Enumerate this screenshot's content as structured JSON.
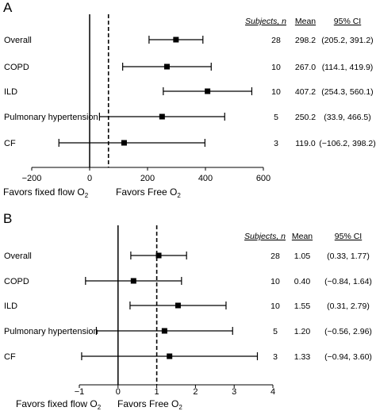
{
  "chart_data": [
    {
      "type": "forest",
      "panel_label": "A",
      "title": "",
      "xlabel": "",
      "ylabel": "",
      "xlim": [
        -200,
        600
      ],
      "xticks": [
        -200,
        0,
        200,
        400,
        600
      ],
      "xtick_labels": [
        "−200",
        "0",
        "200",
        "400",
        "600"
      ],
      "null_line": 0,
      "reference_line": 65,
      "favors_left": "Favors fixed flow O",
      "favors_right": "Favors Free O",
      "favors_subscript": "2",
      "column_headers": {
        "subjects": "Subjects, n",
        "mean": "Mean",
        "ci": "95% CI"
      },
      "rows": [
        {
          "label": "Overall",
          "n": "28",
          "mean": 298.2,
          "lower": 205.2,
          "upper": 391.2,
          "mean_text": "298.2",
          "ci_text": "(205.2, 391.2)"
        },
        {
          "label": "COPD",
          "n": "10",
          "mean": 267.0,
          "lower": 114.1,
          "upper": 419.9,
          "mean_text": "267.0",
          "ci_text": "(114.1, 419.9)"
        },
        {
          "label": "ILD",
          "n": "10",
          "mean": 407.2,
          "lower": 254.3,
          "upper": 560.1,
          "mean_text": "407.2",
          "ci_text": "(254.3, 560.1)"
        },
        {
          "label": "Pulmonary hypertension",
          "n": "5",
          "mean": 250.2,
          "lower": 33.9,
          "upper": 466.5,
          "mean_text": "250.2",
          "ci_text": "(33.9, 466.5)"
        },
        {
          "label": "CF",
          "n": "3",
          "mean": 119.0,
          "lower": -106.2,
          "upper": 398.2,
          "mean_text": "119.0",
          "ci_text": "(−106.2, 398.2)"
        }
      ]
    },
    {
      "type": "forest",
      "panel_label": "B",
      "title": "",
      "xlabel": "",
      "ylabel": "",
      "xlim": [
        -1,
        4
      ],
      "xticks": [
        -1,
        0,
        1,
        2,
        3,
        4
      ],
      "xtick_labels": [
        "−1",
        "0",
        "1",
        "2",
        "3",
        "4"
      ],
      "null_line": 0,
      "reference_line": 1,
      "favors_left": "Favors fixed flow O",
      "favors_right": "Favors Free O",
      "favors_subscript": "2",
      "column_headers": {
        "subjects": "Subjects, n",
        "mean": "Mean",
        "ci": "95% CI"
      },
      "rows": [
        {
          "label": "Overall",
          "n": "28",
          "mean": 1.05,
          "lower": 0.33,
          "upper": 1.77,
          "mean_text": "1.05",
          "ci_text": "(0.33, 1.77)"
        },
        {
          "label": "COPD",
          "n": "10",
          "mean": 0.4,
          "lower": -0.84,
          "upper": 1.64,
          "mean_text": "0.40",
          "ci_text": "(−0.84, 1.64)"
        },
        {
          "label": "ILD",
          "n": "10",
          "mean": 1.55,
          "lower": 0.31,
          "upper": 2.79,
          "mean_text": "1.55",
          "ci_text": "(0.31, 2.79)"
        },
        {
          "label": "Pulmonary hypertension",
          "n": "5",
          "mean": 1.2,
          "lower": -0.56,
          "upper": 2.96,
          "mean_text": "1.20",
          "ci_text": "(−0.56, 2.96)"
        },
        {
          "label": "CF",
          "n": "3",
          "mean": 1.33,
          "lower": -0.94,
          "upper": 3.6,
          "mean_text": "1.33",
          "ci_text": "(−0.94, 3.60)"
        }
      ]
    }
  ]
}
